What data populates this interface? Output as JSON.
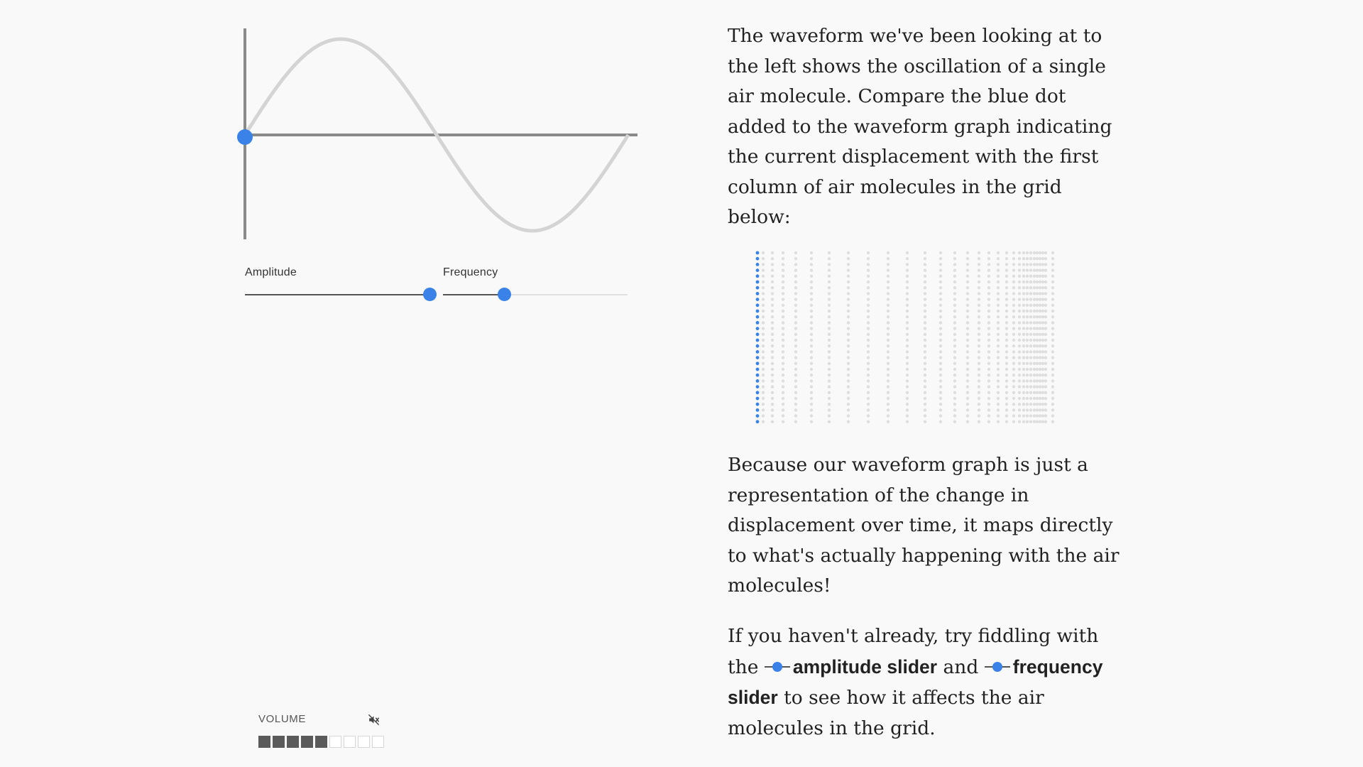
{
  "controls": {
    "amplitude": {
      "label": "Amplitude",
      "value": 1.0
    },
    "frequency": {
      "label": "Frequency",
      "value": 0.34
    }
  },
  "volume": {
    "label": "VOLUME",
    "muted": true,
    "level": 5,
    "segments": 9
  },
  "colors": {
    "accent": "#3a82e8",
    "wave": "#d4d4d4",
    "axis": "#8a8a8a"
  },
  "icons": {
    "mute": "speaker-muted-icon",
    "inline_slider": "slider-thumb-icon"
  },
  "article": {
    "para1": "The waveform we've been looking at to the left shows the oscillation of a single air molecule. Compare the blue dot added to the waveform graph indicating the current displacement with the first column of air molecules in the grid below:",
    "para2": "Because our waveform graph is just a representation of the change in displacement over time, it maps directly to what's actually happening with the air molecules!",
    "para3": {
      "before": "If you haven't already, try fiddling with the",
      "amplitude_link": "amplitude slider",
      "middle": "and",
      "frequency_link": "frequency slider",
      "after": "to see how it affects the air molecules in the grid."
    }
  },
  "grid": {
    "rows": 30,
    "columns": 30,
    "highlighted_column": 0
  }
}
